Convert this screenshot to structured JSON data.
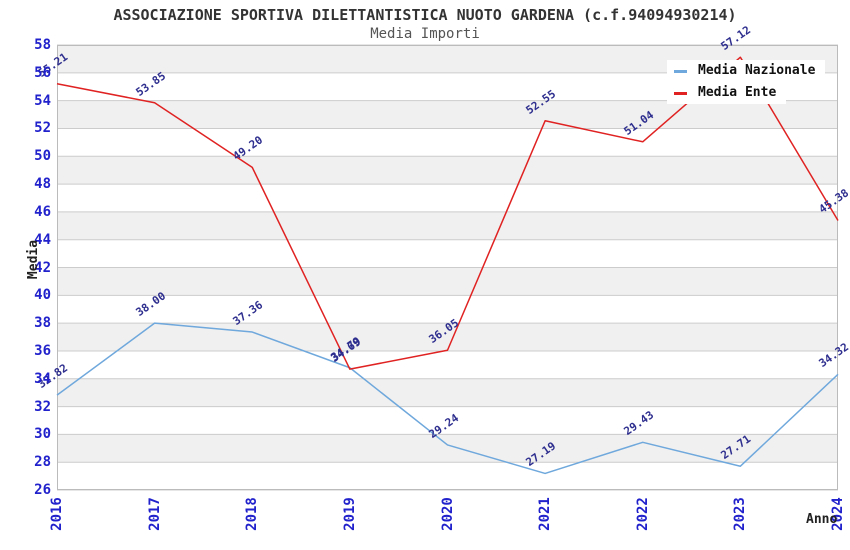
{
  "header": {
    "title": "ASSOCIAZIONE SPORTIVA DILETTANTISTICA NUOTO GARDENA (c.f.94094930214)",
    "subtitle": "Media Importi"
  },
  "axes": {
    "y_title": "Media",
    "x_title": "Anno"
  },
  "legend": {
    "items": [
      {
        "label": "Media Nazionale",
        "color": "#6fa8dc"
      },
      {
        "label": "Media Ente",
        "color": "#e02222"
      }
    ]
  },
  "colors": {
    "tick_text": "#2222cc",
    "point_label_text": "#2e2e8f",
    "band_gray": "#f0f0f0",
    "band_white": "#ffffff",
    "gridline": "#cccccc",
    "plot_border": "#bbbbbb",
    "series_nazionale": "#6fa8dc",
    "series_ente": "#e02222"
  },
  "chart_data": {
    "type": "line",
    "title": "ASSOCIAZIONE SPORTIVA DILETTANTISTICA NUOTO GARDENA (c.f.94094930214)",
    "subtitle": "Media Importi",
    "xlabel": "Anno",
    "ylabel": "Media",
    "x_categories": [
      "2016",
      "2017",
      "2018",
      "2019",
      "2020",
      "2021",
      "2022",
      "2023",
      "2024"
    ],
    "ylim": [
      26,
      58
    ],
    "y_tick_step": 2,
    "grid": "horizontal-bands-alternating",
    "legend_position": "top-right-inside",
    "series": [
      {
        "name": "Media Nazionale",
        "color": "#6fa8dc",
        "values": [
          32.82,
          38.0,
          37.36,
          34.79,
          29.24,
          27.19,
          29.43,
          27.71,
          34.32
        ],
        "value_labels": [
          "32.82",
          "38.00",
          "37.36",
          "34.79",
          "29.24",
          "27.19",
          "29.43",
          "27.71",
          "34.32"
        ]
      },
      {
        "name": "Media Ente",
        "color": "#e02222",
        "values": [
          55.21,
          53.85,
          49.2,
          34.69,
          36.05,
          52.55,
          51.04,
          57.12,
          45.38
        ],
        "value_labels": [
          "55.21",
          "53.85",
          "49.20",
          "34.69",
          "36.05",
          "52.55",
          "51.04",
          "57.12",
          "45.38"
        ]
      }
    ]
  }
}
